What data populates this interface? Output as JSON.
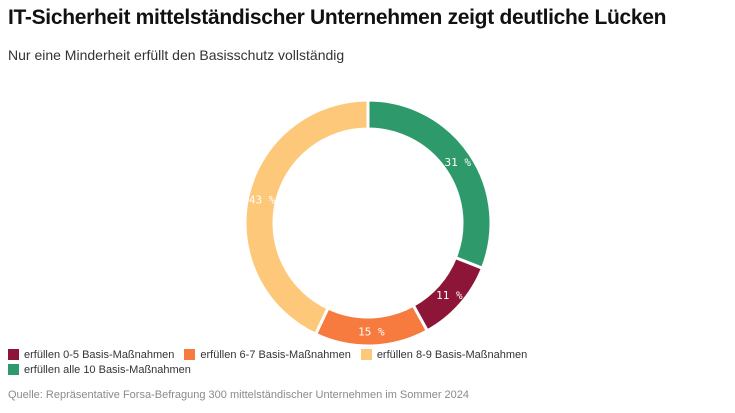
{
  "title": "IT-Sicherheit mittelständischer Unternehmen zeigt deutliche Lücken",
  "subtitle": "Nur eine Minderheit erfüllt den Basisschutz vollständig",
  "source": "Quelle: Repräsentative Forsa-Befragung 300 mittelständischer Unternehmen im Sommer 2024",
  "chart_data": {
    "type": "pie",
    "donut": true,
    "slices": [
      {
        "name": "erfüllen alle 10 Basis-Maßnahmen",
        "value": 31,
        "label": "31 %",
        "color": "#2e9a6b",
        "label_color": "#ffffff"
      },
      {
        "name": "erfüllen 0-5 Basis-Maßnahmen",
        "value": 11,
        "label": "11 %",
        "color": "#8c1538",
        "label_color": "#ffffff"
      },
      {
        "name": "erfüllen 6-7 Basis-Maßnahmen",
        "value": 15,
        "label": "15 %",
        "color": "#f77b3f",
        "label_color": "#ffffff"
      },
      {
        "name": "erfüllen 8-9 Basis-Maßnahmen",
        "value": 43,
        "label": "43 %",
        "color": "#fec87a",
        "label_color": "#ffffff"
      }
    ],
    "legend": [
      {
        "name": "erfüllen 0-5 Basis-Maßnahmen",
        "color": "#8c1538"
      },
      {
        "name": "erfüllen 6-7 Basis-Maßnahmen",
        "color": "#f77b3f"
      },
      {
        "name": "erfüllen 8-9 Basis-Maßnahmen",
        "color": "#fec87a"
      },
      {
        "name": "erfüllen alle 10 Basis-Maßnahmen",
        "color": "#2e9a6b"
      }
    ],
    "legend_position": "bottom-left"
  }
}
